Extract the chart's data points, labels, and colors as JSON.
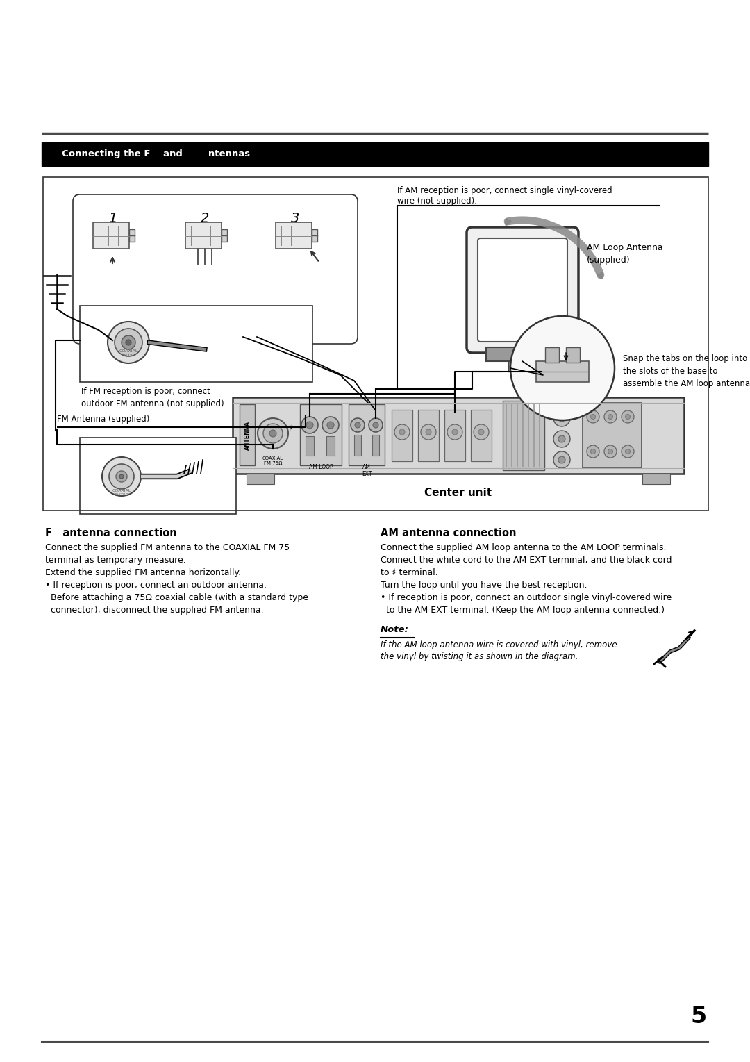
{
  "bg_color": "#ffffff",
  "title_bar_color": "#000000",
  "title_bar_text_color": "#ffffff",
  "separator_color": "#4a4a4a",
  "page_number": "5",
  "fm_section_title": "F   antenna connection",
  "am_section_title": "AM antenna connection",
  "fm_text": "Connect the supplied FM antenna to the COAXIAL FM 75\nterminal as temporary measure.\nExtend the supplied FM antenna horizontally.\n• If reception is poor, connect an outdoor antenna.\n  Before attaching a 75Ω coaxial cable (with a standard type\n  connector), disconnect the supplied FM antenna.",
  "am_text": "Connect the supplied AM loop antenna to the AM LOOP terminals.\nConnect the white cord to the AM EXT terminal, and the black cord\nto ♯ terminal.\nTurn the loop until you have the best reception.\n• If reception is poor, connect an outdoor single vinyl-covered wire\n  to the AM EXT terminal. (Keep the AM loop antenna connected.)",
  "note_title": "Note:",
  "note_body": "If the AM loop antenna wire is covered with vinyl, remove\nthe vinyl by twisting it as shown in the diagram.",
  "center_unit_label": "Center unit",
  "fm_antenna_label": "FM Antenna (supplied)",
  "am_loop_label": "AM Loop Antenna\n(supplied)",
  "if_fm_poor": "If FM reception is poor, connect\noutdoor FM antenna (not supplied).",
  "if_am_poor": "If AM reception is poor, connect single vinyl-covered\nwire (not supplied).",
  "snap_tabs": "Snap the tabs on the loop into\nthe slots of the base to\nassemble the AM loop antenna.",
  "coaxial_label": "COAXIAL\nFM 75Ω",
  "am_loop_conn": "AM LOOP",
  "am_ext_conn": "AM\nEXT",
  "antenna_conn": "ANTENNA"
}
